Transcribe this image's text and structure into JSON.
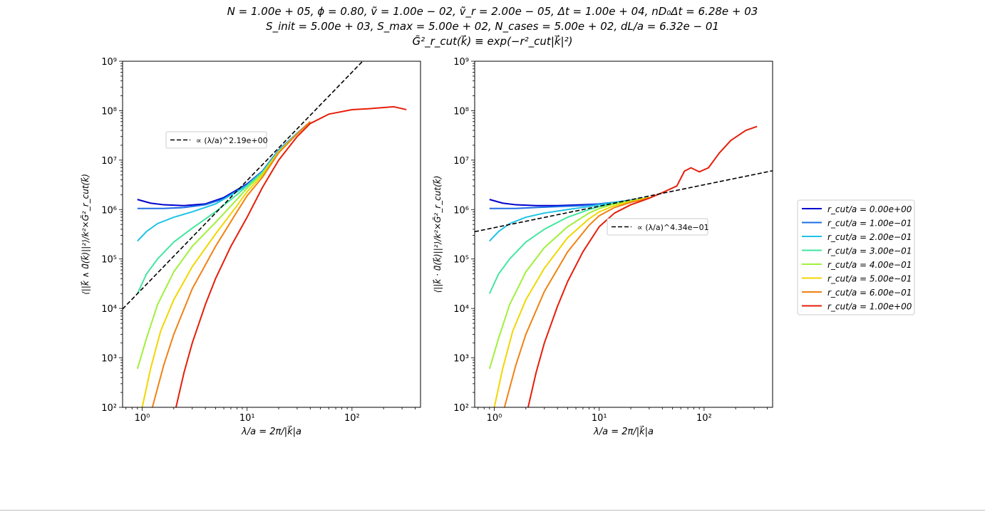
{
  "figure": {
    "title_lines": [
      "N = 1.00e + 05, ϕ = 0.80, ṽ = 1.00e − 02, ṽ_r = 2.00e − 05, Δt = 1.00e + 04, nD₀Δt = 6.28e + 03",
      "S_init = 5.00e + 03, S_max = 5.00e + 02, N_cases = 5.00e + 02, dL/a = 6.32e − 01",
      "G̃²_r_cut(k⃗) ≡ exp(−r²_cut|k⃗|²)"
    ]
  },
  "chart_data": [
    {
      "type": "line",
      "xscale": "log",
      "yscale": "log",
      "xlim": [
        0.65,
        450
      ],
      "ylim": [
        100,
        1000000000
      ],
      "xlabel": "λ/a = 2π/|k⃗|a",
      "ylabel": "⟨||k⃗ ∧ ũ⃗(k⃗)||²⟩/k²×G̃²_r_cut(k⃗)",
      "xticks": [
        "10⁰",
        "10¹",
        "10²"
      ],
      "yticks": [
        "10²",
        "10³",
        "10⁴",
        "10⁵",
        "10⁶",
        "10⁷",
        "10⁸",
        "10⁹"
      ],
      "fit": {
        "label": "∝ (λ/a)^2.19e+00",
        "exponent": 2.19,
        "amplitude": 25000.0,
        "style": "dashed",
        "color": "#000000"
      },
      "legend_position": "upper-left",
      "series": [
        {
          "name": "r_cut/a = 0.00e+00",
          "color": "#0000cd",
          "points": [
            [
              0.9,
              1600000.0
            ],
            [
              1.2,
              1350000.0
            ],
            [
              1.6,
              1250000.0
            ],
            [
              2.5,
              1200000.0
            ],
            [
              4,
              1300000.0
            ],
            [
              6,
              1750000.0
            ],
            [
              8,
              2500000.0
            ],
            [
              10,
              3300000.0
            ],
            [
              14,
              6000000.0
            ],
            [
              20,
              16000000.0
            ],
            [
              30,
              35000000.0
            ],
            [
              40,
              60000000.0
            ]
          ]
        },
        {
          "name": "r_cut/a = 1.00e−01",
          "color": "#1e6ee6",
          "points": [
            [
              0.9,
              1050000.0
            ],
            [
              1.2,
              1050000.0
            ],
            [
              1.6,
              1050000.0
            ],
            [
              2.5,
              1100000.0
            ],
            [
              4,
              1250000.0
            ],
            [
              6,
              1650000.0
            ],
            [
              8,
              2400000.0
            ],
            [
              10,
              3200000.0
            ],
            [
              14,
              6000000.0
            ],
            [
              20,
              16000000.0
            ],
            [
              30,
              35000000.0
            ],
            [
              40,
              60000000.0
            ]
          ]
        },
        {
          "name": "r_cut/a = 2.00e−01",
          "color": "#1ec3e6",
          "points": [
            [
              0.9,
              230000.0
            ],
            [
              1.1,
              360000.0
            ],
            [
              1.4,
              520000.0
            ],
            [
              2,
              700000.0
            ],
            [
              3,
              900000.0
            ],
            [
              5,
              1300000.0
            ],
            [
              8,
              2300000.0
            ],
            [
              10,
              3100000.0
            ],
            [
              14,
              5800000.0
            ],
            [
              20,
              15500000.0
            ],
            [
              30,
              35000000.0
            ],
            [
              40,
              60000000.0
            ]
          ]
        },
        {
          "name": "r_cut/a = 3.00e−01",
          "color": "#41e6a0",
          "points": [
            [
              0.9,
              20000.0
            ],
            [
              1.1,
              50000.0
            ],
            [
              1.4,
              100000.0
            ],
            [
              2,
              220000.0
            ],
            [
              3,
              420000.0
            ],
            [
              5,
              900000.0
            ],
            [
              8,
              2000000.0
            ],
            [
              10,
              3000000.0
            ],
            [
              14,
              5600000.0
            ],
            [
              20,
              15000000.0
            ],
            [
              30,
              34000000.0
            ],
            [
              40,
              60000000.0
            ]
          ]
        },
        {
          "name": "r_cut/a = 4.00e−01",
          "color": "#a0f03c",
          "points": [
            [
              0.9,
              600
            ],
            [
              1.1,
              2500
            ],
            [
              1.4,
              12000.0
            ],
            [
              2,
              55000.0
            ],
            [
              3,
              180000.0
            ],
            [
              5,
              550000.0
            ],
            [
              8,
              1600000.0
            ],
            [
              10,
              2700000.0
            ],
            [
              14,
              5400000.0
            ],
            [
              20,
              15000000.0
            ],
            [
              30,
              34000000.0
            ],
            [
              40,
              60000000.0
            ]
          ]
        },
        {
          "name": "r_cut/a = 5.00e−01",
          "color": "#f0d700",
          "points": [
            [
              1.0,
              100
            ],
            [
              1.2,
              600
            ],
            [
              1.5,
              3500
            ],
            [
              2,
              15000.0
            ],
            [
              3,
              70000.0
            ],
            [
              5,
              320000.0
            ],
            [
              8,
              1200000.0
            ],
            [
              10,
              2300000.0
            ],
            [
              14,
              5000000.0
            ],
            [
              20,
              14500000.0
            ],
            [
              30,
              34000000.0
            ],
            [
              40,
              60000000.0
            ]
          ]
        },
        {
          "name": "r_cut/a = 6.00e−01",
          "color": "#f08214",
          "points": [
            [
              1.25,
              100
            ],
            [
              1.6,
              700
            ],
            [
              2,
              3000
            ],
            [
              3,
              25000.0
            ],
            [
              5,
              180000.0
            ],
            [
              8,
              900000.0
            ],
            [
              10,
              1900000.0
            ],
            [
              14,
              4500000.0
            ],
            [
              20,
              14000000.0
            ],
            [
              30,
              34000000.0
            ],
            [
              40,
              60000000.0
            ]
          ]
        },
        {
          "name": "r_cut/a = 1.00e+00",
          "color": "#e61e0a",
          "points": [
            [
              2.1,
              100
            ],
            [
              2.5,
              500
            ],
            [
              3,
              2000.0
            ],
            [
              4,
              12000.0
            ],
            [
              5,
              40000.0
            ],
            [
              7,
              180000.0
            ],
            [
              10,
              700000.0
            ],
            [
              14,
              2800000.0
            ],
            [
              20,
              10000000.0
            ],
            [
              30,
              30000000.0
            ],
            [
              40,
              55000000.0
            ],
            [
              60,
              85000000.0
            ],
            [
              100,
              105000000.0
            ],
            [
              150,
              110000000.0
            ],
            [
              250,
              120000000.0
            ],
            [
              330,
              105000000.0
            ]
          ]
        }
      ]
    },
    {
      "type": "line",
      "xscale": "log",
      "yscale": "log",
      "xlim": [
        0.65,
        450
      ],
      "ylim": [
        100,
        1000000000
      ],
      "xlabel": "λ/a = 2π/|k⃗|a",
      "ylabel": "⟨||k⃗ · ũ⃗(k⃗)||²⟩/k²×G̃²_r_cut(k⃗)",
      "xticks": [
        "10⁰",
        "10¹",
        "10²"
      ],
      "yticks": [
        "10²",
        "10³",
        "10⁴",
        "10⁵",
        "10⁶",
        "10⁷",
        "10⁸",
        "10⁹"
      ],
      "fit": {
        "label": "∝ (λ/a)^4.34e−01",
        "exponent": 0.434,
        "amplitude": 430000.0,
        "style": "dashed",
        "color": "#000000"
      },
      "legend_position": "center",
      "series": [
        {
          "name": "r_cut/a = 0.00e+00",
          "color": "#0000cd",
          "points": [
            [
              0.9,
              1600000.0
            ],
            [
              1.2,
              1350000.0
            ],
            [
              1.6,
              1250000.0
            ],
            [
              2.5,
              1200000.0
            ],
            [
              4,
              1200000.0
            ],
            [
              7,
              1250000.0
            ],
            [
              10,
              1300000.0
            ],
            [
              14,
              1400000.0
            ],
            [
              20,
              1550000.0
            ],
            [
              30,
              1750000.0
            ]
          ]
        },
        {
          "name": "r_cut/a = 1.00e−01",
          "color": "#1e6ee6",
          "points": [
            [
              0.9,
              1050000.0
            ],
            [
              1.2,
              1050000.0
            ],
            [
              1.6,
              1050000.0
            ],
            [
              2.5,
              1100000.0
            ],
            [
              4,
              1150000.0
            ],
            [
              7,
              1200000.0
            ],
            [
              10,
              1300000.0
            ],
            [
              14,
              1400000.0
            ],
            [
              20,
              1550000.0
            ],
            [
              30,
              1750000.0
            ]
          ]
        },
        {
          "name": "r_cut/a = 2.00e−01",
          "color": "#1ec3e6",
          "points": [
            [
              0.9,
              230000.0
            ],
            [
              1.1,
              360000.0
            ],
            [
              1.4,
              520000.0
            ],
            [
              2,
              700000.0
            ],
            [
              3,
              850000.0
            ],
            [
              5,
              1000000.0
            ],
            [
              8,
              1150000.0
            ],
            [
              10,
              1250000.0
            ],
            [
              14,
              1400000.0
            ],
            [
              20,
              1550000.0
            ],
            [
              30,
              1750000.0
            ]
          ]
        },
        {
          "name": "r_cut/a = 3.00e−01",
          "color": "#41e6a0",
          "points": [
            [
              0.9,
              20000.0
            ],
            [
              1.1,
              50000.0
            ],
            [
              1.4,
              100000.0
            ],
            [
              2,
              220000.0
            ],
            [
              3,
              400000.0
            ],
            [
              5,
              700000.0
            ],
            [
              8,
              1000000.0
            ],
            [
              10,
              1150000.0
            ],
            [
              14,
              1350000.0
            ],
            [
              20,
              1500000.0
            ],
            [
              30,
              1750000.0
            ]
          ]
        },
        {
          "name": "r_cut/a = 4.00e−01",
          "color": "#a0f03c",
          "points": [
            [
              0.9,
              600
            ],
            [
              1.1,
              2500
            ],
            [
              1.4,
              12000.0
            ],
            [
              2,
              55000.0
            ],
            [
              3,
              170000.0
            ],
            [
              5,
              450000.0
            ],
            [
              8,
              850000.0
            ],
            [
              10,
              1050000.0
            ],
            [
              14,
              1300000.0
            ],
            [
              20,
              1500000.0
            ],
            [
              30,
              1750000.0
            ]
          ]
        },
        {
          "name": "r_cut/a = 5.00e−01",
          "color": "#f0d700",
          "points": [
            [
              1.0,
              100
            ],
            [
              1.2,
              600
            ],
            [
              1.5,
              3500
            ],
            [
              2,
              15000.0
            ],
            [
              3,
              65000.0
            ],
            [
              5,
              270000.0
            ],
            [
              8,
              650000.0
            ],
            [
              10,
              900000.0
            ],
            [
              14,
              1200000.0
            ],
            [
              20,
              1450000.0
            ],
            [
              30,
              1750000.0
            ]
          ]
        },
        {
          "name": "r_cut/a = 6.00e−01",
          "color": "#f08214",
          "points": [
            [
              1.25,
              100
            ],
            [
              1.6,
              700
            ],
            [
              2,
              3000
            ],
            [
              3,
              22000.0
            ],
            [
              5,
              140000.0
            ],
            [
              8,
              480000.0
            ],
            [
              10,
              750000.0
            ],
            [
              14,
              1100000.0
            ],
            [
              20,
              1400000.0
            ],
            [
              30,
              1700000.0
            ]
          ]
        },
        {
          "name": "r_cut/a = 1.00e+00",
          "color": "#e61e0a",
          "points": [
            [
              2.1,
              100
            ],
            [
              2.5,
              500
            ],
            [
              3,
              2000.0
            ],
            [
              4,
              11000.0
            ],
            [
              5,
              35000.0
            ],
            [
              7,
              140000.0
            ],
            [
              10,
              450000.0
            ],
            [
              14,
              850000.0
            ],
            [
              20,
              1250000.0
            ],
            [
              30,
              1700000.0
            ],
            [
              40,
              2200000.0
            ],
            [
              55,
              3000000.0
            ],
            [
              65,
              6000000.0
            ],
            [
              75,
              7000000.0
            ],
            [
              90,
              5800000.0
            ],
            [
              110,
              7000000.0
            ],
            [
              140,
              14000000.0
            ],
            [
              180,
              25000000.0
            ],
            [
              250,
              40000000.0
            ],
            [
              320,
              48000000.0
            ]
          ]
        }
      ]
    }
  ]
}
